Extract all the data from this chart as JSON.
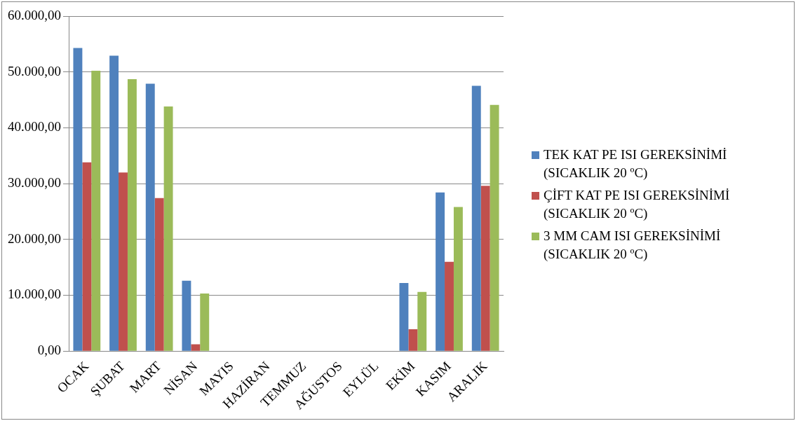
{
  "chart_data": {
    "type": "bar",
    "categories": [
      "OCAK",
      "ŞUBAT",
      "MART",
      "NİSAN",
      "MAYIS",
      "HAZİRAN",
      "TEMMUZ",
      "AĞUSTOS",
      "EYLÜL",
      "EKİM",
      "KASIM",
      "ARALIK"
    ],
    "series": [
      {
        "name": "TEK KAT PE ISI GEREKSİNİMİ (SICAKLIK 20 ºC)",
        "color": "#4f81bd",
        "values": [
          54300,
          52900,
          47900,
          12600,
          0,
          0,
          0,
          0,
          0,
          12200,
          28400,
          47500
        ]
      },
      {
        "name": "ÇİFT KAT PE ISI GEREKSİNİMİ (SICAKLIK 20 ºC)",
        "color": "#c0504d",
        "values": [
          33800,
          32000,
          27400,
          1200,
          0,
          0,
          0,
          0,
          0,
          3900,
          16000,
          29600
        ]
      },
      {
        "name": "3 MM CAM ISI GEREKSİNİMİ (SICAKLIK 20 ºC)",
        "color": "#9bbb59",
        "values": [
          50200,
          48700,
          43800,
          10300,
          0,
          0,
          0,
          0,
          0,
          10600,
          25800,
          44100
        ]
      }
    ],
    "ylim": [
      0,
      60000
    ],
    "yticks": [
      {
        "value": 0,
        "label": "0,00"
      },
      {
        "value": 10000,
        "label": "10.000,00"
      },
      {
        "value": 20000,
        "label": "20.000,00"
      },
      {
        "value": 30000,
        "label": "30.000,00"
      },
      {
        "value": 40000,
        "label": "40.000,00"
      },
      {
        "value": 50000,
        "label": "50.000,00"
      },
      {
        "value": 60000,
        "label": "60.000,00"
      }
    ],
    "grid": "y",
    "legend": "right"
  }
}
